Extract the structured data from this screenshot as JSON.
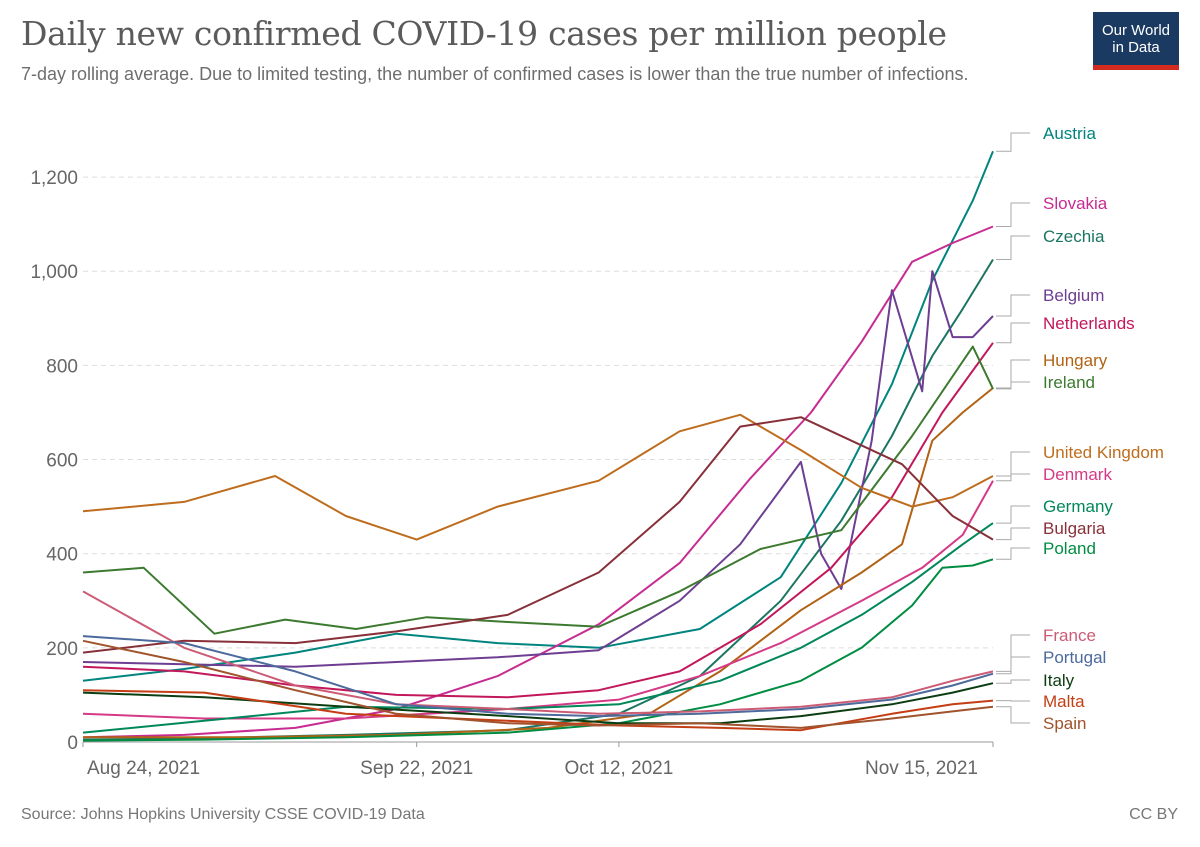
{
  "header": {
    "title": "Daily new confirmed COVID-19 cases per million people",
    "subtitle": "7-day rolling average. Due to limited testing, the number of confirmed cases is lower than the true number of infections.",
    "logo_line1": "Our World",
    "logo_line2": "in Data"
  },
  "footer": {
    "source": "Source: Johns Hopkins University CSSE COVID-19 Data",
    "license": "CC BY"
  },
  "colors": {
    "grid": "#dddddd",
    "axis": "#999999",
    "logo_bg": "#1a3a62",
    "logo_accent": "#d42b21"
  },
  "chart_data": {
    "type": "line",
    "title": "Daily new confirmed COVID-19 cases per million people",
    "subtitle": "7-day rolling average. Due to limited testing, the number of confirmed cases is lower than the true number of infections.",
    "xlabel": "",
    "ylabel": "",
    "x_ticks": [
      "Aug 24, 2021",
      "Sep 22, 2021",
      "Oct 12, 2021",
      "Nov 15, 2021"
    ],
    "x_range": [
      "2021-08-20",
      "2021-11-18"
    ],
    "ylim": [
      0,
      1300
    ],
    "y_ticks": [
      0,
      200,
      400,
      600,
      800,
      1000,
      1200
    ],
    "y_tick_labels": [
      "0",
      "200",
      "400",
      "600",
      "800",
      "1,000",
      "1,200"
    ],
    "grid": "horizontal dashed",
    "legend": "labels at right end of lines",
    "series": [
      {
        "name": "Austria",
        "color": "#00847e",
        "x": [
          "2021-08-20",
          "2021-08-30",
          "2021-09-10",
          "2021-09-20",
          "2021-09-30",
          "2021-10-10",
          "2021-10-20",
          "2021-10-28",
          "2021-11-03",
          "2021-11-08",
          "2021-11-12",
          "2021-11-16",
          "2021-11-18"
        ],
        "y": [
          130,
          155,
          190,
          230,
          210,
          200,
          240,
          350,
          550,
          760,
          980,
          1150,
          1255
        ]
      },
      {
        "name": "Slovakia",
        "color": "#c62c92",
        "x": [
          "2021-08-20",
          "2021-08-30",
          "2021-09-10",
          "2021-09-20",
          "2021-09-30",
          "2021-10-10",
          "2021-10-18",
          "2021-10-25",
          "2021-10-31",
          "2021-11-05",
          "2021-11-10",
          "2021-11-14",
          "2021-11-18"
        ],
        "y": [
          10,
          15,
          30,
          70,
          140,
          250,
          380,
          560,
          700,
          850,
          1020,
          1060,
          1095
        ]
      },
      {
        "name": "Czechia",
        "color": "#1b7561",
        "x": [
          "2021-08-20",
          "2021-09-01",
          "2021-09-15",
          "2021-10-01",
          "2021-10-12",
          "2021-10-20",
          "2021-10-28",
          "2021-11-03",
          "2021-11-08",
          "2021-11-12",
          "2021-11-15",
          "2021-11-18"
        ],
        "y": [
          5,
          8,
          15,
          25,
          60,
          140,
          300,
          470,
          650,
          820,
          920,
          1025
        ]
      },
      {
        "name": "Belgium",
        "color": "#6d3e91",
        "x": [
          "2021-08-20",
          "2021-08-30",
          "2021-09-10",
          "2021-09-20",
          "2021-09-30",
          "2021-10-10",
          "2021-10-18",
          "2021-10-24",
          "2021-10-30",
          "2021-11-01",
          "2021-11-03",
          "2021-11-06",
          "2021-11-08",
          "2021-11-11",
          "2021-11-12",
          "2021-11-14",
          "2021-11-16",
          "2021-11-18"
        ],
        "y": [
          170,
          165,
          160,
          170,
          180,
          195,
          300,
          420,
          595,
          400,
          325,
          640,
          960,
          745,
          1000,
          860,
          860,
          905
        ]
      },
      {
        "name": "Netherlands",
        "color": "#c2185b",
        "x": [
          "2021-08-20",
          "2021-08-30",
          "2021-09-10",
          "2021-09-20",
          "2021-10-01",
          "2021-10-10",
          "2021-10-18",
          "2021-10-26",
          "2021-11-02",
          "2021-11-08",
          "2021-11-13",
          "2021-11-18"
        ],
        "y": [
          160,
          150,
          120,
          100,
          95,
          110,
          150,
          250,
          370,
          520,
          700,
          848
        ]
      },
      {
        "name": "Hungary",
        "color": "#b16214",
        "x": [
          "2021-08-20",
          "2021-09-05",
          "2021-09-20",
          "2021-10-05",
          "2021-10-15",
          "2021-10-22",
          "2021-10-30",
          "2021-11-05",
          "2021-11-09",
          "2021-11-12",
          "2021-11-15",
          "2021-11-18"
        ],
        "y": [
          10,
          10,
          15,
          30,
          60,
          150,
          280,
          360,
          420,
          640,
          700,
          752
        ]
      },
      {
        "name": "Ireland",
        "color": "#3c7a2f",
        "x": [
          "2021-08-20",
          "2021-08-26",
          "2021-09-02",
          "2021-09-09",
          "2021-09-16",
          "2021-09-23",
          "2021-10-01",
          "2021-10-10",
          "2021-10-18",
          "2021-10-26",
          "2021-11-03",
          "2021-11-10",
          "2021-11-16",
          "2021-11-18"
        ],
        "y": [
          360,
          370,
          230,
          260,
          240,
          265,
          255,
          245,
          320,
          410,
          450,
          650,
          840,
          750
        ]
      },
      {
        "name": "United Kingdom",
        "color": "#be6d1e",
        "x": [
          "2021-08-20",
          "2021-08-30",
          "2021-09-08",
          "2021-09-15",
          "2021-09-22",
          "2021-09-30",
          "2021-10-10",
          "2021-10-18",
          "2021-10-24",
          "2021-10-30",
          "2021-11-05",
          "2021-11-10",
          "2021-11-14",
          "2021-11-18"
        ],
        "y": [
          490,
          510,
          565,
          480,
          430,
          500,
          555,
          660,
          695,
          620,
          540,
          500,
          520,
          565
        ]
      },
      {
        "name": "Denmark",
        "color": "#d43a87",
        "x": [
          "2021-08-20",
          "2021-09-01",
          "2021-09-15",
          "2021-10-01",
          "2021-10-12",
          "2021-10-20",
          "2021-10-28",
          "2021-11-05",
          "2021-11-11",
          "2021-11-15",
          "2021-11-18"
        ],
        "y": [
          60,
          50,
          50,
          70,
          90,
          140,
          210,
          300,
          370,
          440,
          555
        ]
      },
      {
        "name": "Germany",
        "color": "#00875a",
        "x": [
          "2021-08-20",
          "2021-09-01",
          "2021-09-15",
          "2021-10-01",
          "2021-10-12",
          "2021-10-22",
          "2021-10-30",
          "2021-11-05",
          "2021-11-10",
          "2021-11-15",
          "2021-11-18"
        ],
        "y": [
          20,
          45,
          75,
          70,
          80,
          130,
          200,
          270,
          340,
          420,
          465
        ]
      },
      {
        "name": "Bulgaria",
        "color": "#883039",
        "x": [
          "2021-08-20",
          "2021-08-30",
          "2021-09-10",
          "2021-09-20",
          "2021-10-01",
          "2021-10-10",
          "2021-10-18",
          "2021-10-24",
          "2021-10-30",
          "2021-11-04",
          "2021-11-09",
          "2021-11-14",
          "2021-11-18"
        ],
        "y": [
          190,
          215,
          210,
          235,
          270,
          360,
          510,
          670,
          690,
          640,
          590,
          480,
          430
        ]
      },
      {
        "name": "Poland",
        "color": "#008d42",
        "x": [
          "2021-08-20",
          "2021-09-01",
          "2021-09-15",
          "2021-10-01",
          "2021-10-12",
          "2021-10-22",
          "2021-10-30",
          "2021-11-05",
          "2021-11-10",
          "2021-11-13",
          "2021-11-16",
          "2021-11-18"
        ],
        "y": [
          3,
          5,
          10,
          20,
          40,
          80,
          130,
          200,
          290,
          370,
          375,
          388
        ]
      },
      {
        "name": "France",
        "color": "#cc5c76",
        "x": [
          "2021-08-20",
          "2021-08-30",
          "2021-09-10",
          "2021-09-20",
          "2021-10-01",
          "2021-10-10",
          "2021-10-20",
          "2021-10-30",
          "2021-11-08",
          "2021-11-14",
          "2021-11-18"
        ],
        "y": [
          320,
          200,
          120,
          80,
          70,
          60,
          65,
          75,
          95,
          130,
          150
        ]
      },
      {
        "name": "Portugal",
        "color": "#4c6a9c",
        "x": [
          "2021-08-20",
          "2021-08-30",
          "2021-09-10",
          "2021-09-20",
          "2021-10-01",
          "2021-10-10",
          "2021-10-20",
          "2021-10-30",
          "2021-11-08",
          "2021-11-14",
          "2021-11-18"
        ],
        "y": [
          225,
          210,
          150,
          80,
          60,
          55,
          60,
          70,
          90,
          120,
          145
        ]
      },
      {
        "name": "Italy",
        "color": "#0c3d12",
        "x": [
          "2021-08-20",
          "2021-09-01",
          "2021-09-15",
          "2021-10-01",
          "2021-10-12",
          "2021-10-22",
          "2021-10-30",
          "2021-11-08",
          "2021-11-14",
          "2021-11-18"
        ],
        "y": [
          105,
          95,
          75,
          55,
          40,
          40,
          55,
          80,
          105,
          125
        ]
      },
      {
        "name": "Malta",
        "color": "#c43e15",
        "x": [
          "2021-08-20",
          "2021-09-01",
          "2021-09-15",
          "2021-10-01",
          "2021-10-12",
          "2021-10-22",
          "2021-10-30",
          "2021-11-08",
          "2021-11-14",
          "2021-11-18"
        ],
        "y": [
          110,
          105,
          60,
          45,
          35,
          30,
          25,
          60,
          80,
          88
        ]
      },
      {
        "name": "Spain",
        "color": "#a0532c",
        "x": [
          "2021-08-20",
          "2021-08-30",
          "2021-09-10",
          "2021-09-20",
          "2021-10-01",
          "2021-10-10",
          "2021-10-20",
          "2021-10-30",
          "2021-11-08",
          "2021-11-14",
          "2021-11-18"
        ],
        "y": [
          215,
          170,
          110,
          60,
          40,
          35,
          40,
          30,
          50,
          65,
          75
        ]
      }
    ]
  }
}
